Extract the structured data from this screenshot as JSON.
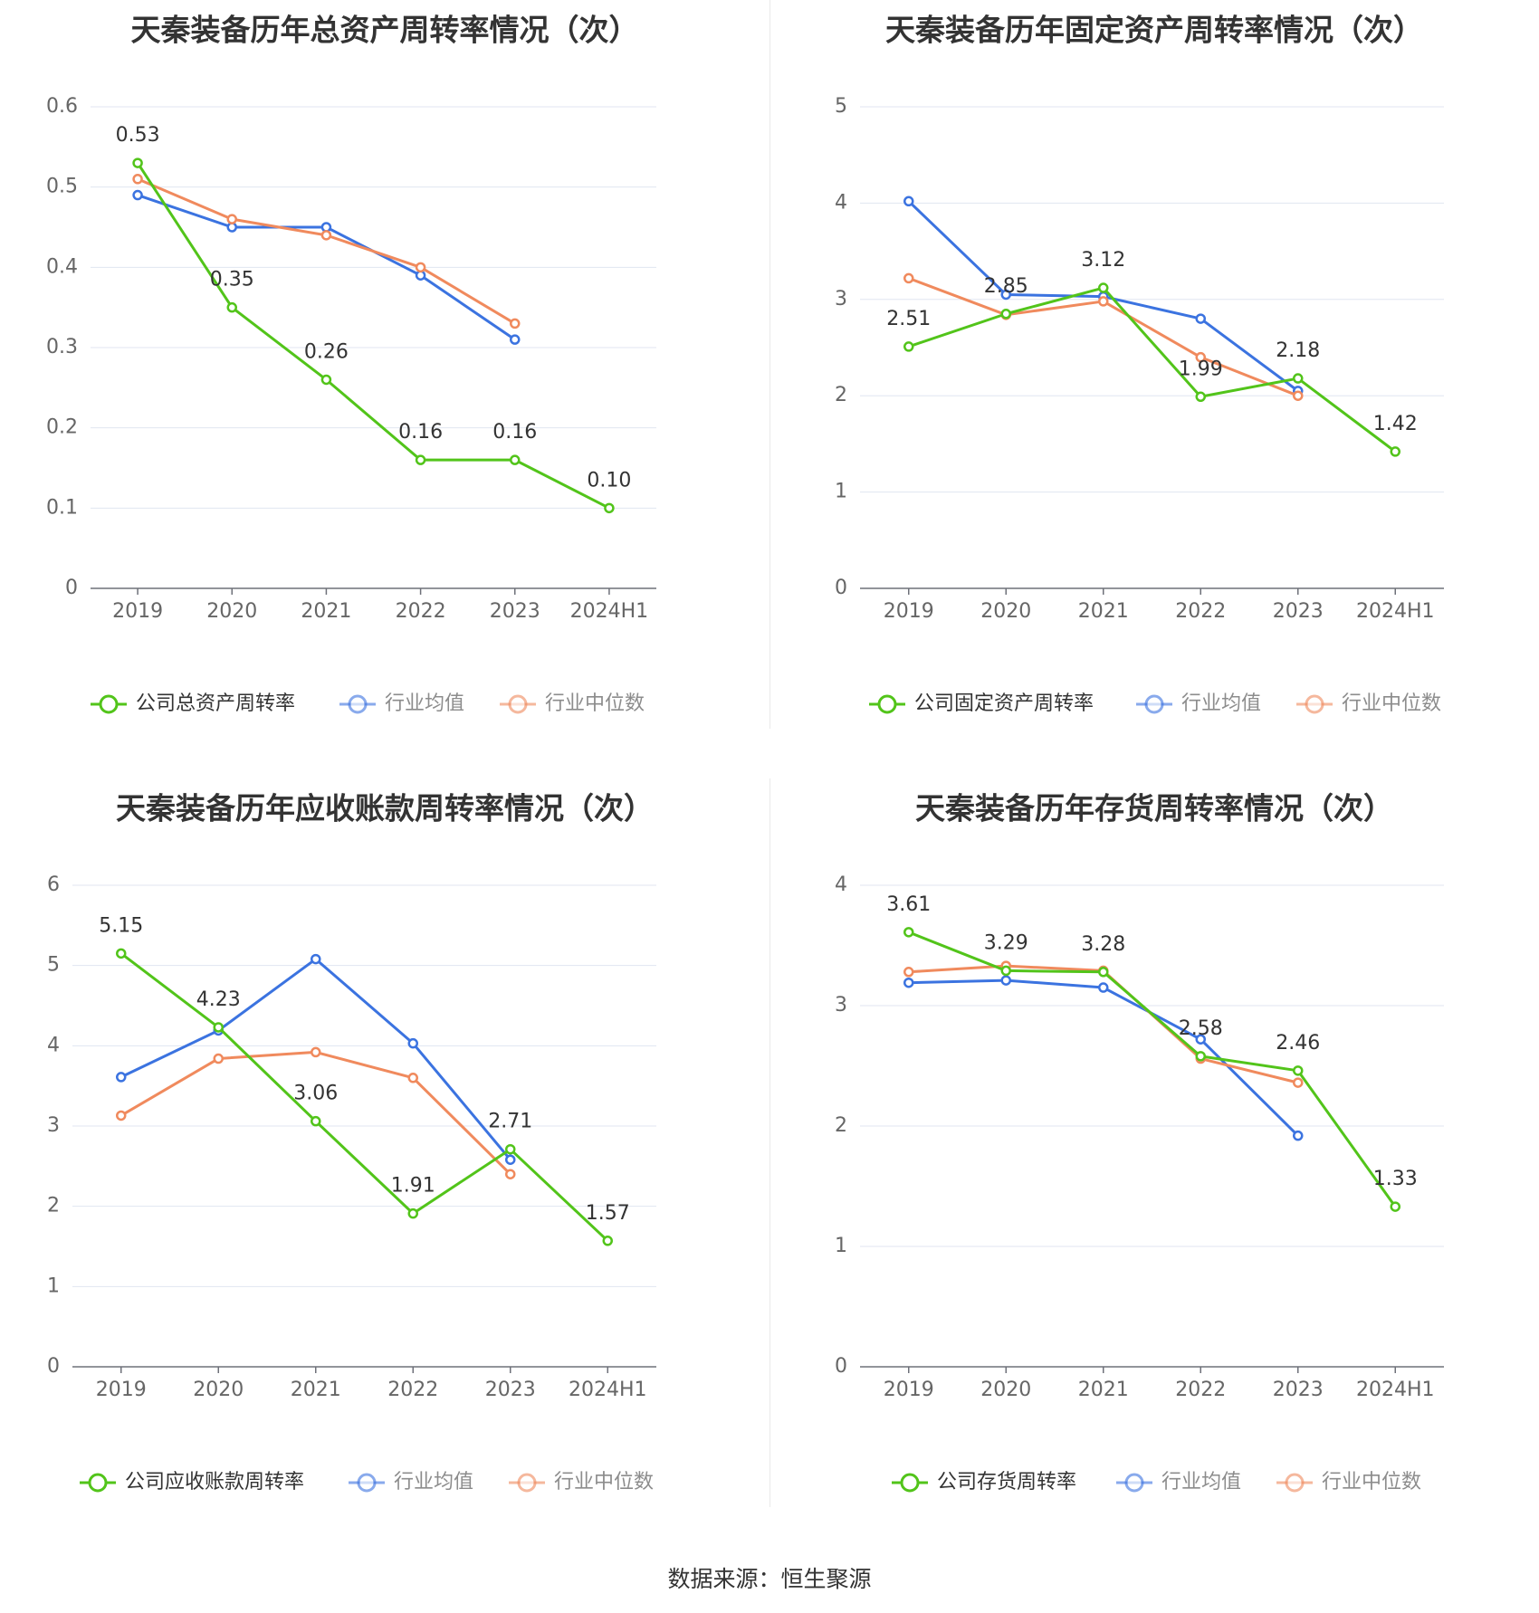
{
  "colors": {
    "company": "#52c41a",
    "average": "#3b73e0",
    "median": "#f08a5d",
    "grid": "#e0e6f1",
    "axis": "#6e7079",
    "legend_muted": "#8c8c8c"
  },
  "source_label": "数据来源：恒生聚源",
  "chart_data": [
    {
      "type": "line",
      "title": "天秦装备历年总资产周转率情况（次）",
      "categories": [
        "2019",
        "2020",
        "2021",
        "2022",
        "2023",
        "2024H1"
      ],
      "y_ticks": [
        "0",
        "0.1",
        "0.2",
        "0.3",
        "0.4",
        "0.5",
        "0.6"
      ],
      "ylim": [
        0,
        0.6
      ],
      "grid": true,
      "legend_position": "bottom",
      "series": [
        {
          "key": "company",
          "name": "公司总资产周转率",
          "values": [
            0.53,
            0.35,
            0.26,
            0.16,
            0.16,
            0.1
          ],
          "labels": [
            "0.53",
            "0.35",
            "0.26",
            "0.16",
            "0.16",
            "0.10"
          ]
        },
        {
          "key": "average",
          "name": "行业均值",
          "values": [
            0.49,
            0.45,
            0.45,
            0.39,
            0.31,
            null
          ]
        },
        {
          "key": "median",
          "name": "行业中位数",
          "values": [
            0.51,
            0.46,
            0.44,
            0.4,
            0.33,
            null
          ]
        }
      ]
    },
    {
      "type": "line",
      "title": "天秦装备历年固定资产周转率情况（次）",
      "categories": [
        "2019",
        "2020",
        "2021",
        "2022",
        "2023",
        "2024H1"
      ],
      "y_ticks": [
        "0",
        "1",
        "2",
        "3",
        "4",
        "5"
      ],
      "ylim": [
        0,
        5
      ],
      "grid": true,
      "legend_position": "bottom",
      "series": [
        {
          "key": "company",
          "name": "公司固定资产周转率",
          "values": [
            2.51,
            2.85,
            3.12,
            1.99,
            2.18,
            1.42
          ],
          "labels": [
            "2.51",
            "2.85",
            "3.12",
            "1.99",
            "2.18",
            "1.42"
          ]
        },
        {
          "key": "average",
          "name": "行业均值",
          "values": [
            4.02,
            3.05,
            3.03,
            2.8,
            2.05,
            null
          ]
        },
        {
          "key": "median",
          "name": "行业中位数",
          "values": [
            3.22,
            2.84,
            2.98,
            2.4,
            2.0,
            null
          ]
        }
      ]
    },
    {
      "type": "line",
      "title": "天秦装备历年应收账款周转率情况（次）",
      "categories": [
        "2019",
        "2020",
        "2021",
        "2022",
        "2023",
        "2024H1"
      ],
      "y_ticks": [
        "0",
        "1",
        "2",
        "3",
        "4",
        "5",
        "6"
      ],
      "ylim": [
        0,
        6
      ],
      "grid": true,
      "legend_position": "bottom",
      "series": [
        {
          "key": "company",
          "name": "公司应收账款周转率",
          "values": [
            5.15,
            4.23,
            3.06,
            1.91,
            2.71,
            1.57
          ],
          "labels": [
            "5.15",
            "4.23",
            "3.06",
            "1.91",
            "2.71",
            "1.57"
          ]
        },
        {
          "key": "average",
          "name": "行业均值",
          "values": [
            3.61,
            4.19,
            5.08,
            4.03,
            2.58,
            null
          ]
        },
        {
          "key": "median",
          "name": "行业中位数",
          "values": [
            3.13,
            3.84,
            3.92,
            3.6,
            2.4,
            null
          ]
        }
      ]
    },
    {
      "type": "line",
      "title": "天秦装备历年存货周转率情况（次）",
      "categories": [
        "2019",
        "2020",
        "2021",
        "2022",
        "2023",
        "2024H1"
      ],
      "y_ticks": [
        "0",
        "1",
        "2",
        "3",
        "4"
      ],
      "ylim": [
        0,
        4
      ],
      "grid": true,
      "legend_position": "bottom",
      "series": [
        {
          "key": "company",
          "name": "公司存货周转率",
          "values": [
            3.61,
            3.29,
            3.28,
            2.58,
            2.46,
            1.33
          ],
          "labels": [
            "3.61",
            "3.29",
            "3.28",
            "2.58",
            "2.46",
            "1.33"
          ]
        },
        {
          "key": "average",
          "name": "行业均值",
          "values": [
            3.19,
            3.21,
            3.15,
            2.72,
            1.92,
            null
          ]
        },
        {
          "key": "median",
          "name": "行业中位数",
          "values": [
            3.28,
            3.33,
            3.29,
            2.56,
            2.36,
            null
          ]
        }
      ]
    }
  ]
}
